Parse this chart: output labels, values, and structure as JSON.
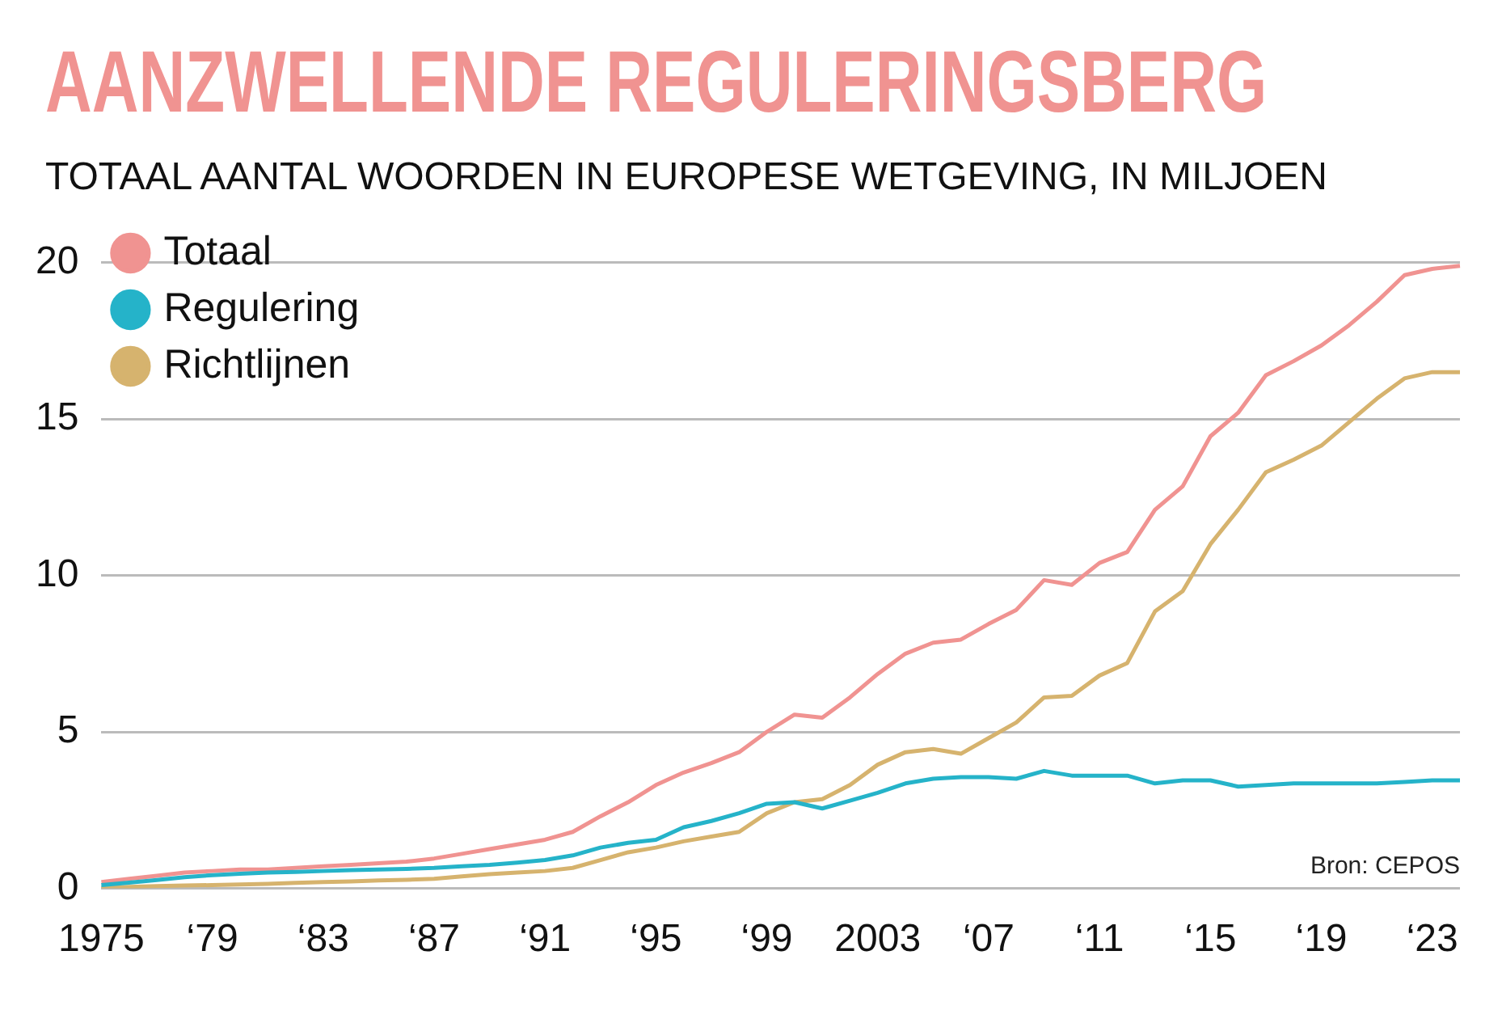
{
  "chart_data": {
    "type": "line",
    "title": "AANZWELLENDE REGULERINGSBERG",
    "subtitle": "TOTAAL AANTAL WOORDEN IN EUROPESE WETGEVING, IN MILJOEN",
    "categories": [
      "1975",
      null,
      null,
      null,
      "‘79",
      null,
      null,
      null,
      "‘83",
      null,
      null,
      null,
      "‘87",
      null,
      null,
      null,
      "‘91",
      null,
      null,
      null,
      "‘95",
      null,
      null,
      null,
      "‘99",
      null,
      null,
      null,
      "2003",
      null,
      null,
      null,
      "‘07",
      null,
      null,
      null,
      "‘11",
      null,
      null,
      null,
      "‘15",
      null,
      null,
      null,
      "‘19",
      null,
      null,
      null,
      "‘23",
      null
    ],
    "series": [
      {
        "name": "Totaal",
        "color": "#f09391",
        "values": [
          0.2,
          0.3,
          0.4,
          0.5,
          0.55,
          0.6,
          0.6,
          0.65,
          0.7,
          0.75,
          0.8,
          0.85,
          0.95,
          1.1,
          1.25,
          1.4,
          1.55,
          1.8,
          2.3,
          2.75,
          3.3,
          3.7,
          4.0,
          4.35,
          5.0,
          5.55,
          5.45,
          6.1,
          6.85,
          7.5,
          7.85,
          7.95,
          8.45,
          8.9,
          9.85,
          9.7,
          10.4,
          10.75,
          12.1,
          12.85,
          14.45,
          15.2,
          16.4,
          16.85,
          17.35,
          18.0,
          18.75,
          19.6,
          19.8,
          19.9
        ]
      },
      {
        "name": "Regulering",
        "color": "#25b3c9",
        "values": [
          0.1,
          0.18,
          0.26,
          0.35,
          0.42,
          0.46,
          0.5,
          0.52,
          0.55,
          0.58,
          0.6,
          0.62,
          0.65,
          0.7,
          0.75,
          0.82,
          0.9,
          1.05,
          1.3,
          1.45,
          1.55,
          1.95,
          2.15,
          2.4,
          2.7,
          2.75,
          2.55,
          2.8,
          3.05,
          3.35,
          3.5,
          3.55,
          3.55,
          3.5,
          3.75,
          3.6,
          3.6,
          3.6,
          3.35,
          3.45,
          3.45,
          3.25,
          3.3,
          3.35,
          3.35,
          3.35,
          3.35,
          3.4,
          3.45,
          3.45
        ]
      },
      {
        "name": "Richtlijnen",
        "color": "#d6b36e",
        "values": [
          0.02,
          0.04,
          0.07,
          0.09,
          0.1,
          0.12,
          0.14,
          0.17,
          0.2,
          0.22,
          0.25,
          0.27,
          0.3,
          0.38,
          0.45,
          0.5,
          0.55,
          0.65,
          0.9,
          1.15,
          1.3,
          1.5,
          1.65,
          1.8,
          2.4,
          2.75,
          2.85,
          3.3,
          3.95,
          4.35,
          4.45,
          4.3,
          4.8,
          5.3,
          6.1,
          6.15,
          6.8,
          7.2,
          8.85,
          9.5,
          11.0,
          12.1,
          13.3,
          13.7,
          14.15,
          14.9,
          15.65,
          16.3,
          16.5,
          16.5
        ]
      }
    ],
    "ylim": [
      0,
      20
    ],
    "yticks": [
      0,
      5,
      10,
      15,
      20
    ],
    "grid": "y",
    "legend": "top left",
    "marker": "none",
    "line_style": "solid",
    "annotations": [
      "Bron: CEPOS"
    ]
  }
}
